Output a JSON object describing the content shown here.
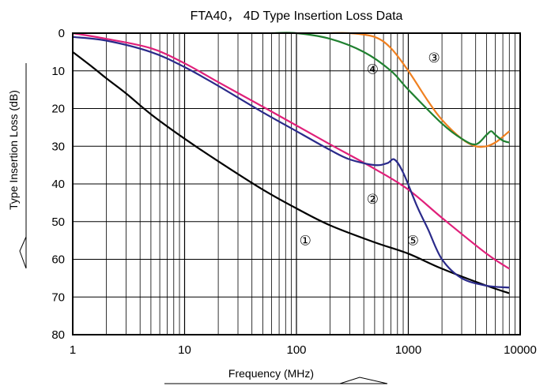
{
  "chart_data": {
    "type": "line",
    "title": "FTA40， 4D Type Insertion Loss Data",
    "xlabel": "Frequency (MHz)",
    "ylabel": "Type Insertion Loss (dB)",
    "x_scale": "log",
    "xlim": [
      1,
      10000
    ],
    "ylim": [
      0,
      80
    ],
    "y_inverted": true,
    "grid": true,
    "x_ticks": [
      "1",
      "10",
      "100",
      "1000",
      "10000"
    ],
    "y_ticks": [
      "0",
      "10",
      "20",
      "30",
      "40",
      "50",
      "60",
      "70",
      "80"
    ],
    "series": [
      {
        "name": "①",
        "color": "#000000",
        "label_at": [
          120,
          55
        ],
        "points": [
          [
            1,
            5
          ],
          [
            1.5,
            9
          ],
          [
            2,
            12
          ],
          [
            3,
            16
          ],
          [
            5,
            21.5
          ],
          [
            10,
            28
          ],
          [
            20,
            34
          ],
          [
            50,
            41.5
          ],
          [
            100,
            46.5
          ],
          [
            200,
            51
          ],
          [
            500,
            55.5
          ],
          [
            1000,
            58.5
          ],
          [
            2000,
            62.5
          ],
          [
            5000,
            67
          ],
          [
            8000,
            69
          ]
        ]
      },
      {
        "name": "②",
        "color": "#e0207a",
        "label_at": [
          480,
          44
        ],
        "points": [
          [
            1,
            0
          ],
          [
            2,
            1.5
          ],
          [
            5,
            4
          ],
          [
            10,
            8
          ],
          [
            20,
            13
          ],
          [
            50,
            19.5
          ],
          [
            100,
            24.5
          ],
          [
            200,
            29.5
          ],
          [
            500,
            36
          ],
          [
            1000,
            41.5
          ],
          [
            2000,
            49
          ],
          [
            5000,
            58.5
          ],
          [
            8000,
            62.5
          ]
        ]
      },
      {
        "name": "③",
        "color": "#f08020",
        "label_at": [
          1700,
          6.5
        ],
        "points": [
          [
            200,
            0
          ],
          [
            300,
            0
          ],
          [
            500,
            1
          ],
          [
            700,
            4
          ],
          [
            1000,
            10
          ],
          [
            1500,
            18
          ],
          [
            2000,
            23
          ],
          [
            3000,
            28
          ],
          [
            4000,
            30
          ],
          [
            5000,
            30
          ],
          [
            6000,
            29
          ],
          [
            7000,
            27.5
          ],
          [
            8000,
            26
          ]
        ]
      },
      {
        "name": "④",
        "color": "#208030",
        "label_at": [
          480,
          9.5
        ],
        "points": [
          [
            60,
            0
          ],
          [
            100,
            0
          ],
          [
            200,
            1.5
          ],
          [
            400,
            5
          ],
          [
            700,
            10
          ],
          [
            1000,
            15
          ],
          [
            2000,
            24
          ],
          [
            3000,
            28
          ],
          [
            4000,
            29.5
          ],
          [
            5000,
            27
          ],
          [
            5500,
            26
          ],
          [
            6000,
            27
          ],
          [
            7000,
            28.5
          ],
          [
            8000,
            29
          ]
        ]
      },
      {
        "name": "⑤",
        "color": "#2a2a8a",
        "label_at": [
          1100,
          55
        ],
        "points": [
          [
            1,
            1
          ],
          [
            2,
            2
          ],
          [
            5,
            5
          ],
          [
            10,
            9
          ],
          [
            20,
            14
          ],
          [
            50,
            21
          ],
          [
            100,
            26
          ],
          [
            200,
            31
          ],
          [
            300,
            33.5
          ],
          [
            500,
            35
          ],
          [
            650,
            34.5
          ],
          [
            750,
            33.5
          ],
          [
            900,
            37
          ],
          [
            1200,
            46
          ],
          [
            1500,
            52
          ],
          [
            2000,
            60
          ],
          [
            3000,
            65
          ],
          [
            5000,
            67
          ],
          [
            8000,
            67.5
          ]
        ]
      }
    ]
  }
}
